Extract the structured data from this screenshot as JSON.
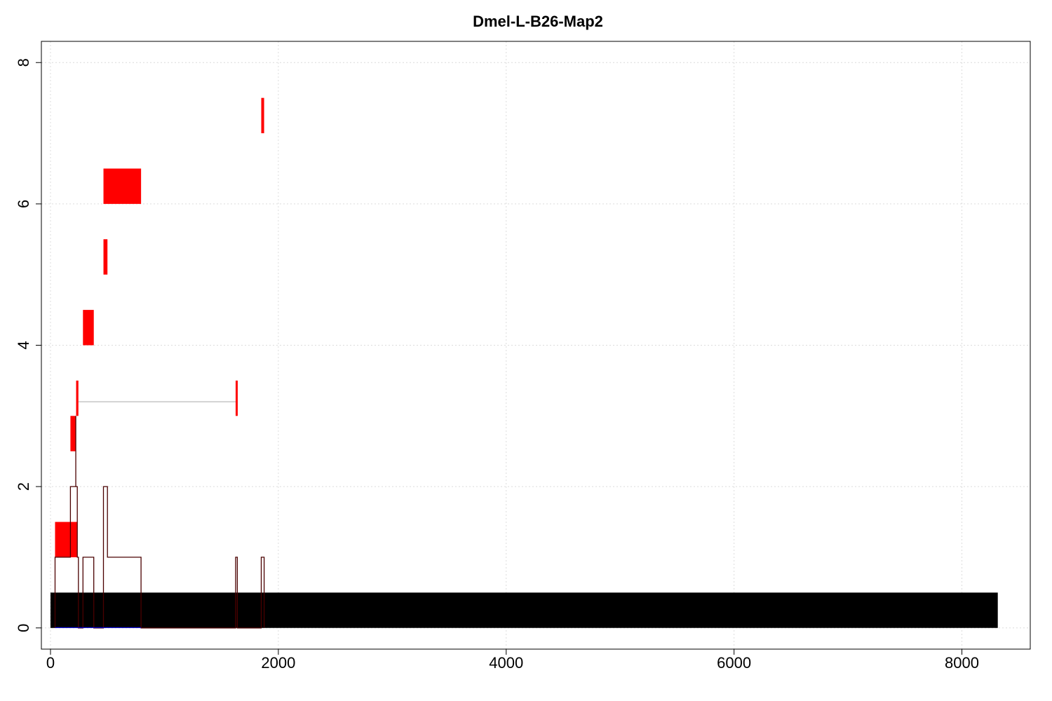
{
  "chart_data": {
    "type": "bar",
    "title": "Dmel-L-B26-Map2",
    "xlabel": "",
    "ylabel": "",
    "xlim": [
      -80,
      8600
    ],
    "ylim": [
      -0.3,
      8.3
    ],
    "xticks": [
      0,
      2000,
      4000,
      6000,
      8000
    ],
    "yticks": [
      0,
      2,
      4,
      6,
      8
    ],
    "xtick_labels": [
      "0",
      "2000",
      "4000",
      "6000",
      "8000"
    ],
    "ytick_labels": [
      "0",
      "2",
      "4",
      "6",
      "8"
    ],
    "grid": true,
    "colors": {
      "sequence": "#000000",
      "feature": "#ff0000",
      "coverage": "#4a0000",
      "connector": "#d3d3d3",
      "baseline": "#0000ff"
    },
    "sequence_bar": {
      "start": 0,
      "end": 8315,
      "y0": 0,
      "y1": 0.5
    },
    "features": [
      {
        "start": 40,
        "end": 235,
        "y0": 1.0,
        "y1": 1.5
      },
      {
        "start": 175,
        "end": 220,
        "y0": 2.5,
        "y1": 3.0
      },
      {
        "start": 225,
        "end": 245,
        "y0": 3.0,
        "y1": 3.5
      },
      {
        "start": 1625,
        "end": 1640,
        "y0": 3.0,
        "y1": 3.5
      },
      {
        "start": 285,
        "end": 380,
        "y0": 4.0,
        "y1": 4.5
      },
      {
        "start": 465,
        "end": 500,
        "y0": 5.0,
        "y1": 5.5
      },
      {
        "start": 465,
        "end": 795,
        "y0": 6.0,
        "y1": 6.5
      },
      {
        "start": 1850,
        "end": 1875,
        "y0": 7.0,
        "y1": 7.5
      }
    ],
    "connectors": [
      {
        "x0": 245,
        "x1": 1625,
        "y": 3.2
      }
    ],
    "coverage_step": [
      [
        40,
        0
      ],
      [
        40,
        1
      ],
      [
        175,
        1
      ],
      [
        175,
        2
      ],
      [
        235,
        2
      ],
      [
        235,
        1
      ],
      [
        245,
        1
      ],
      [
        245,
        0
      ],
      [
        285,
        0
      ],
      [
        285,
        1
      ],
      [
        380,
        1
      ],
      [
        380,
        0
      ],
      [
        465,
        0
      ],
      [
        465,
        2
      ],
      [
        500,
        2
      ],
      [
        500,
        1
      ],
      [
        795,
        1
      ],
      [
        795,
        0
      ],
      [
        1625,
        0
      ],
      [
        1625,
        1
      ],
      [
        1640,
        1
      ],
      [
        1640,
        0
      ],
      [
        1850,
        0
      ],
      [
        1850,
        1
      ],
      [
        1875,
        1
      ],
      [
        1875,
        0
      ]
    ],
    "coverage_spike": {
      "x": 222,
      "y0": 2,
      "y1": 3
    },
    "baseline_segment": {
      "x0": 40,
      "x1": 795,
      "y": 0
    }
  }
}
